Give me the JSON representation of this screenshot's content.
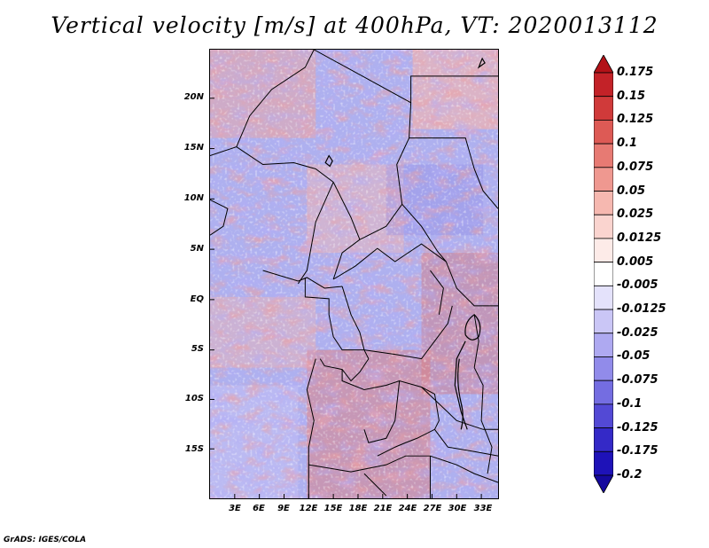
{
  "title": "Vertical velocity [m/s] at 400hPa, VT: 2020013112",
  "credit": "GrADS: IGES/COLA",
  "map": {
    "lat_labels": [
      "20N",
      "15N",
      "10N",
      "5N",
      "EQ",
      "5S",
      "10S",
      "15S"
    ],
    "lon_labels": [
      "3E",
      "6E",
      "9E",
      "12E",
      "15E",
      "18E",
      "21E",
      "24E",
      "27E",
      "30E",
      "33E"
    ]
  },
  "colorbar": {
    "levels": [
      "0.175",
      "0.15",
      "0.125",
      "0.1",
      "0.075",
      "0.05",
      "0.025",
      "0.0125",
      "0.005",
      "-0.005",
      "-0.0125",
      "-0.025",
      "-0.05",
      "-0.075",
      "-0.1",
      "-0.125",
      "-0.175",
      "-0.2"
    ],
    "colors": [
      "#b31218",
      "#c32228",
      "#d03a3a",
      "#dd5a55",
      "#e77a73",
      "#ef9890",
      "#f6b8b0",
      "#fad4cf",
      "#fdebe8",
      "#ffffff",
      "#e4e2fb",
      "#cac6f6",
      "#aea9f1",
      "#918bea",
      "#746de1",
      "#5349d5",
      "#3429c7",
      "#1e12b8",
      "#15099e"
    ]
  },
  "chart_data": {
    "type": "heatmap",
    "title": "Vertical velocity [m/s] at 400hPa, VT: 2020013112",
    "variable": "Vertical velocity",
    "units": "m/s",
    "pressure_level": "400hPa",
    "valid_time": "2020013112",
    "lon_range": [
      0,
      35
    ],
    "lat_range": [
      -20,
      25
    ],
    "color_levels": [
      -0.2,
      -0.175,
      -0.125,
      -0.1,
      -0.075,
      -0.05,
      -0.025,
      -0.0125,
      -0.005,
      0.005,
      0.0125,
      0.025,
      0.05,
      0.075,
      0.1,
      0.125,
      0.15,
      0.175
    ]
  }
}
